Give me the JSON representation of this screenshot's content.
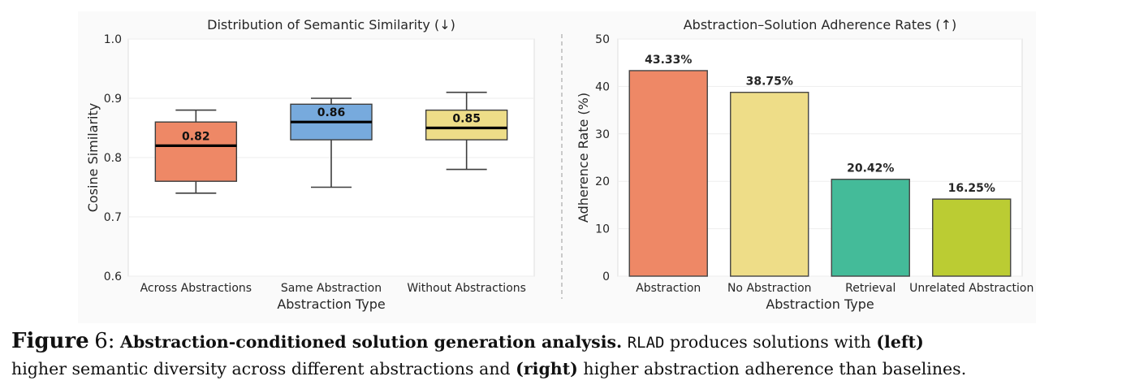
{
  "chart_data": [
    {
      "type": "box",
      "title": "Distribution of Semantic Similarity (↓)",
      "xlabel": "Abstraction Type",
      "ylabel": "Cosine Similarity",
      "ylim": [
        0.6,
        1.0
      ],
      "yticks": [
        "0.6",
        "0.7",
        "0.8",
        "0.9",
        "1.0"
      ],
      "grid": true,
      "categories": [
        "Across Abstractions",
        "Same Abstraction",
        "Without Abstractions"
      ],
      "boxes": [
        {
          "name": "Across Abstractions",
          "min": 0.74,
          "q1": 0.76,
          "median": 0.82,
          "q3": 0.86,
          "max": 0.88,
          "label": "0.82",
          "color": "#EE8866"
        },
        {
          "name": "Same Abstraction",
          "min": 0.75,
          "q1": 0.83,
          "median": 0.86,
          "q3": 0.89,
          "max": 0.9,
          "label": "0.86",
          "color": "#77AADD"
        },
        {
          "name": "Without Abstractions",
          "min": 0.78,
          "q1": 0.83,
          "median": 0.85,
          "q3": 0.88,
          "max": 0.91,
          "label": "0.85",
          "color": "#EEDD88"
        }
      ]
    },
    {
      "type": "bar",
      "title": "Abstraction–Solution Adherence Rates (↑)",
      "xlabel": "Abstraction Type",
      "ylabel": "Adherence Rate (%)",
      "ylim": [
        0,
        50
      ],
      "yticks": [
        "0",
        "10",
        "20",
        "30",
        "40",
        "50"
      ],
      "grid": true,
      "categories": [
        "Abstraction",
        "No Abstraction",
        "Retrieval",
        "Unrelated Abstraction"
      ],
      "values": [
        43.33,
        38.75,
        20.42,
        16.25
      ],
      "labels": [
        "43.33%",
        "38.75%",
        "20.42%",
        "16.25%"
      ],
      "colors": [
        "#EE8866",
        "#EEDD88",
        "#44BB99",
        "#BBCC33"
      ]
    }
  ],
  "caption": {
    "figure_label": "Figure",
    "figure_number": "6:",
    "bold_title": "Abstraction-conditioned solution generation analysis.",
    "method_name": "RLAD",
    "text_1": "produces solutions with",
    "bold_left": "(left)",
    "text_2": "higher semantic diversity across different abstractions and",
    "bold_right": "(right)",
    "text_3": "higher abstraction adherence than baselines."
  }
}
